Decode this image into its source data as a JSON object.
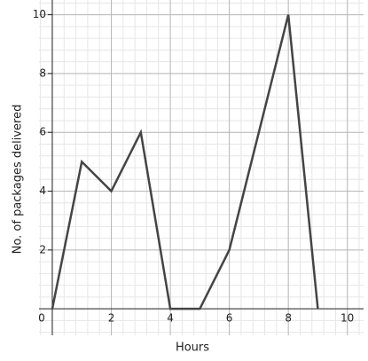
{
  "chart_data": {
    "type": "line",
    "x_label": "Hours",
    "y_label": "No. of packages delivered",
    "x": [
      0,
      1,
      2,
      3,
      4,
      5,
      6,
      8,
      9
    ],
    "series": [
      {
        "color": "#444444",
        "values": [
          0,
          5,
          4,
          6,
          0,
          0,
          2,
          10,
          0
        ]
      }
    ],
    "xlim": [
      -0.45,
      10.55
    ],
    "ylim": [
      -0.9,
      10.5
    ],
    "xticks": [
      0,
      2,
      4,
      6,
      8,
      10
    ],
    "yticks": [
      2,
      4,
      6,
      8,
      10
    ],
    "grid": true
  }
}
